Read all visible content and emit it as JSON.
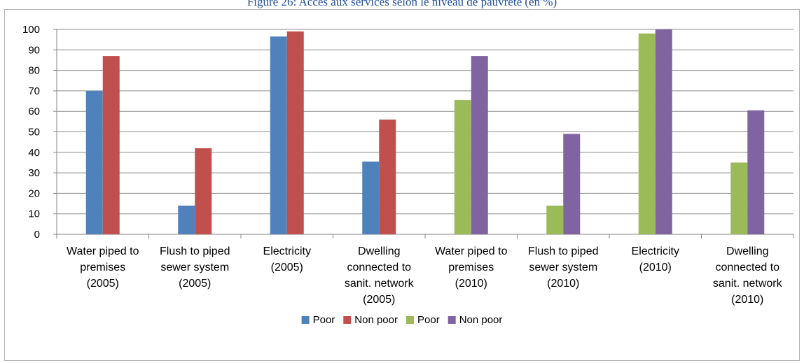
{
  "title": "Figure 26: Accès aux services selon le niveau de pauvreté (en %)",
  "colors": {
    "poor_2005": "#4f81bd",
    "nonpoor_2005": "#c0504d",
    "poor_2010": "#9bbb59",
    "nonpoor_2010": "#8064a2",
    "grid": "#8c8c8c",
    "axis": "#868686",
    "text": "#000000"
  },
  "chart_data": {
    "type": "bar",
    "categories": [
      [
        "Water piped to",
        "premises",
        "(2005)"
      ],
      [
        "Flush to piped",
        "sewer system",
        "(2005)"
      ],
      [
        "Electricity",
        "(2005)"
      ],
      [
        "Dwelling",
        "connected to",
        "sanit. network",
        "(2005)"
      ],
      [
        "Water piped to",
        "premises",
        "(2010)"
      ],
      [
        "Flush to piped",
        "sewer system",
        "(2010)"
      ],
      [
        "Electricity",
        "(2010)"
      ],
      [
        "Dwelling",
        "connected to",
        "sanit. network",
        "(2010)"
      ]
    ],
    "series": [
      {
        "name": "Poor",
        "color": "poor_2005",
        "values": [
          70,
          14,
          96.5,
          35.5,
          null,
          null,
          null,
          null
        ]
      },
      {
        "name": "Non poor",
        "color": "nonpoor_2005",
        "values": [
          87,
          42,
          99,
          56,
          null,
          null,
          null,
          null
        ]
      },
      {
        "name": "Poor",
        "color": "poor_2010",
        "values": [
          null,
          null,
          null,
          null,
          65.5,
          14,
          98,
          35
        ]
      },
      {
        "name": "Non poor",
        "color": "nonpoor_2010",
        "values": [
          null,
          null,
          null,
          null,
          87,
          49,
          100,
          60.5
        ]
      }
    ],
    "yticks": [
      0,
      10,
      20,
      30,
      40,
      50,
      60,
      70,
      80,
      90,
      100
    ],
    "ylim": [
      0,
      100
    ],
    "grid": true,
    "legend": "bottom"
  }
}
